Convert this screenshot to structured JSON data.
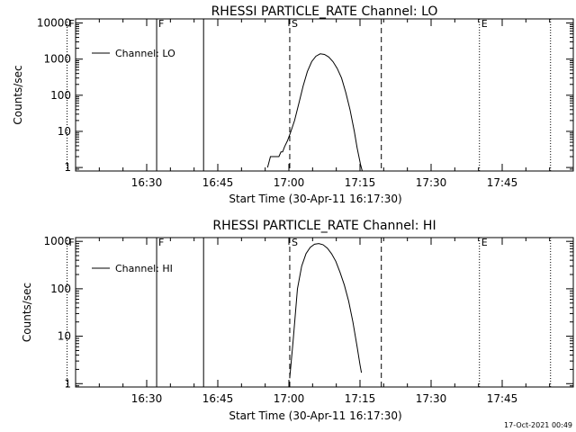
{
  "footer": {
    "datestamp": "17-Oct-2021 00:49"
  },
  "chart_data": [
    {
      "type": "line",
      "title": "RHESSI PARTICLE_RATE Channel: LO",
      "xlabel": "Start Time (30-Apr-11 16:17:30)",
      "ylabel": "Counts/sec",
      "yscale": "log",
      "xlim": [
        16.25,
        18.0
      ],
      "ylim": [
        0.8,
        13000
      ],
      "x_ticks": [
        {
          "value": 16.5,
          "label": "16:30"
        },
        {
          "value": 16.75,
          "label": "16:45"
        },
        {
          "value": 17.0,
          "label": "17:00"
        },
        {
          "value": 17.25,
          "label": "17:15"
        },
        {
          "value": 17.5,
          "label": "17:30"
        },
        {
          "value": 17.75,
          "label": "17:45"
        }
      ],
      "y_ticks": [
        {
          "value": 1,
          "label": "1"
        },
        {
          "value": 10,
          "label": "10"
        },
        {
          "value": 100,
          "label": "100"
        },
        {
          "value": 1000,
          "label": "1000"
        },
        {
          "value": 10000,
          "label": "10000"
        }
      ],
      "legend": {
        "label": "Channel: LO",
        "position": "top-left"
      },
      "markers": [
        {
          "name": "flag-f",
          "label": "F",
          "x": 16.22,
          "style": "dotted"
        },
        {
          "name": "flag-f2",
          "label": "F",
          "x": 16.535,
          "style": "solid"
        },
        {
          "name": "flag-n",
          "label": "",
          "x": 16.7,
          "style": "solid"
        },
        {
          "name": "flag-s",
          "label": "S",
          "x": 17.003,
          "style": "dashed"
        },
        {
          "name": "flag-s2",
          "label": "",
          "x": 17.325,
          "style": "dashed"
        },
        {
          "name": "flag-e",
          "label": "E",
          "x": 17.67,
          "style": "dotted"
        },
        {
          "name": "flag-e2",
          "label": "",
          "x": 17.92,
          "style": "dotted"
        }
      ],
      "series": [
        {
          "name": "Channel: LO",
          "x": [
            16.925,
            16.935,
            16.965,
            16.972,
            16.978,
            16.985,
            16.995,
            17.005,
            17.02,
            17.035,
            17.05,
            17.065,
            17.08,
            17.095,
            17.11,
            17.125,
            17.14,
            17.155,
            17.17,
            17.185,
            17.2,
            17.215,
            17.23,
            17.24,
            17.252,
            17.258
          ],
          "y": [
            1.0,
            2.0,
            2.0,
            2.7,
            2.7,
            3.8,
            5.5,
            9,
            20,
            60,
            180,
            450,
            850,
            1200,
            1400,
            1350,
            1150,
            850,
            550,
            300,
            120,
            40,
            10,
            3.5,
            1.2,
            0.8
          ]
        }
      ]
    },
    {
      "type": "line",
      "title": "RHESSI PARTICLE_RATE Channel: HI",
      "xlabel": "Start Time (30-Apr-11 16:17:30)",
      "ylabel": "Counts/sec",
      "yscale": "log",
      "xlim": [
        16.25,
        18.0
      ],
      "ylim": [
        0.85,
        1200
      ],
      "x_ticks": [
        {
          "value": 16.5,
          "label": "16:30"
        },
        {
          "value": 16.75,
          "label": "16:45"
        },
        {
          "value": 17.0,
          "label": "17:00"
        },
        {
          "value": 17.25,
          "label": "17:15"
        },
        {
          "value": 17.5,
          "label": "17:30"
        },
        {
          "value": 17.75,
          "label": "17:45"
        }
      ],
      "y_ticks": [
        {
          "value": 1,
          "label": "1"
        },
        {
          "value": 10,
          "label": "10"
        },
        {
          "value": 100,
          "label": "100"
        },
        {
          "value": 1000,
          "label": "1000"
        }
      ],
      "legend": {
        "label": "Channel: HI",
        "position": "top-left"
      },
      "markers": [
        {
          "name": "flag-f",
          "label": "F",
          "x": 16.22,
          "style": "dotted"
        },
        {
          "name": "flag-f2",
          "label": "F",
          "x": 16.535,
          "style": "solid"
        },
        {
          "name": "flag-n",
          "label": "",
          "x": 16.7,
          "style": "solid"
        },
        {
          "name": "flag-s",
          "label": "S",
          "x": 17.003,
          "style": "dashed"
        },
        {
          "name": "flag-s2",
          "label": "",
          "x": 17.325,
          "style": "dashed"
        },
        {
          "name": "flag-e",
          "label": "E",
          "x": 17.67,
          "style": "dotted"
        },
        {
          "name": "flag-e2",
          "label": "",
          "x": 17.92,
          "style": "dotted"
        }
      ],
      "series": [
        {
          "name": "Channel: HI",
          "x": [
            17.003,
            17.015,
            17.03,
            17.045,
            17.06,
            17.075,
            17.09,
            17.105,
            17.12,
            17.135,
            17.15,
            17.165,
            17.18,
            17.195,
            17.21,
            17.225,
            17.24,
            17.25,
            17.255
          ],
          "y": [
            1.3,
            8,
            100,
            300,
            550,
            750,
            870,
            900,
            850,
            720,
            550,
            380,
            220,
            120,
            55,
            20,
            6,
            2.5,
            1.7
          ]
        }
      ]
    }
  ]
}
